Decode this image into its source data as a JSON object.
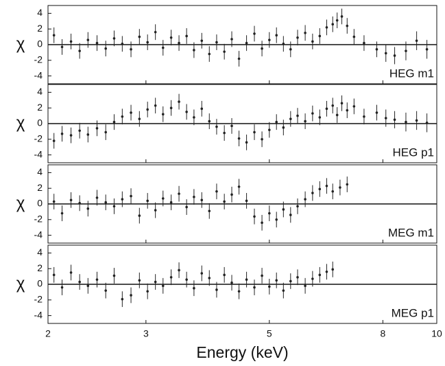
{
  "chart_data": [
    {
      "type": "scatter",
      "label": "HEG m1",
      "ylabel": "χ",
      "xscale": "log",
      "xlim": [
        2,
        10
      ],
      "xticks": [
        2,
        3,
        5,
        8,
        10
      ],
      "ylim": [
        -5,
        5
      ],
      "yticks": [
        -4,
        -2,
        0,
        2,
        4
      ],
      "color": "#222222",
      "x": [
        2.05,
        2.12,
        2.2,
        2.28,
        2.36,
        2.45,
        2.54,
        2.63,
        2.72,
        2.82,
        2.92,
        3.02,
        3.12,
        3.22,
        3.33,
        3.44,
        3.55,
        3.66,
        3.78,
        3.9,
        4.02,
        4.15,
        4.28,
        4.41,
        4.55,
        4.7,
        4.85,
        5.0,
        5.15,
        5.3,
        5.46,
        5.62,
        5.8,
        5.98,
        6.16,
        6.34,
        6.5,
        6.62,
        6.75,
        6.9,
        7.1,
        7.4,
        7.8,
        8.1,
        8.4,
        8.8,
        9.2,
        9.6
      ],
      "values": [
        1.2,
        -0.3,
        0.4,
        -0.8,
        0.6,
        0.2,
        -0.5,
        0.8,
        0.1,
        -0.6,
        1.0,
        0.3,
        1.6,
        -0.4,
        0.9,
        0.2,
        1.1,
        -0.7,
        0.5,
        -1.2,
        0.3,
        -0.9,
        0.7,
        -1.8,
        0.2,
        1.4,
        -0.5,
        0.6,
        1.2,
        0.1,
        -0.6,
        0.9,
        1.5,
        0.4,
        1.1,
        2.2,
        2.6,
        3.1,
        3.6,
        2.4,
        1.0,
        0.2,
        -0.6,
        -1.1,
        -1.4,
        -0.8,
        0.5,
        -0.6
      ],
      "errors": [
        1,
        1,
        1,
        1,
        1,
        1,
        1,
        1,
        1,
        1,
        1,
        1,
        1,
        1,
        1,
        1,
        1,
        1,
        1,
        1,
        1,
        1,
        1,
        1,
        1,
        1,
        1,
        1,
        1,
        1,
        1,
        1,
        1,
        1,
        1,
        1,
        1,
        1,
        1,
        1,
        1,
        1,
        1,
        1.1,
        1.1,
        1.2,
        1.2,
        1.2
      ]
    },
    {
      "type": "scatter",
      "label": "HEG p1",
      "ylabel": "χ",
      "xscale": "log",
      "xlim": [
        2,
        10
      ],
      "xticks": [
        2,
        3,
        5,
        8,
        10
      ],
      "ylim": [
        -5,
        5
      ],
      "yticks": [
        -4,
        -2,
        0,
        2,
        4
      ],
      "color": "#222222",
      "x": [
        2.05,
        2.12,
        2.2,
        2.28,
        2.36,
        2.45,
        2.54,
        2.63,
        2.72,
        2.82,
        2.92,
        3.02,
        3.12,
        3.22,
        3.33,
        3.44,
        3.55,
        3.66,
        3.78,
        3.9,
        4.02,
        4.15,
        4.28,
        4.41,
        4.55,
        4.7,
        4.85,
        5.0,
        5.15,
        5.3,
        5.46,
        5.62,
        5.8,
        5.98,
        6.16,
        6.34,
        6.5,
        6.62,
        6.75,
        6.9,
        7.1,
        7.4,
        7.8,
        8.1,
        8.4,
        8.8,
        9.2,
        9.6
      ],
      "values": [
        -2.2,
        -1.3,
        -1.5,
        -0.9,
        -1.4,
        -0.6,
        -1.1,
        0.2,
        0.9,
        1.4,
        0.6,
        1.8,
        2.3,
        1.2,
        2.0,
        2.8,
        1.5,
        0.8,
        1.9,
        0.3,
        -0.4,
        -1.2,
        -0.3,
        -1.9,
        -2.4,
        -1.1,
        -2.0,
        -0.8,
        0.2,
        -0.5,
        0.6,
        1.0,
        0.3,
        1.3,
        0.8,
        1.9,
        2.3,
        1.1,
        2.6,
        1.7,
        2.2,
        0.9,
        1.4,
        0.7,
        0.5,
        0.2,
        0.4,
        0.1
      ],
      "errors": [
        1,
        1,
        1,
        1,
        1,
        1,
        1,
        1,
        1,
        1,
        1,
        1,
        1,
        1,
        1,
        1,
        1,
        1,
        1,
        1,
        1,
        1,
        1,
        1,
        1,
        1,
        1,
        1,
        1,
        1,
        1,
        1,
        1,
        1,
        1,
        1,
        1,
        1,
        1,
        1,
        1,
        1,
        1,
        1.1,
        1.1,
        1.2,
        1.2,
        1.2
      ]
    },
    {
      "type": "scatter",
      "label": "MEG m1",
      "ylabel": "χ",
      "xscale": "log",
      "xlim": [
        2,
        10
      ],
      "xticks": [
        2,
        3,
        5,
        8,
        10
      ],
      "ylim": [
        -5,
        5
      ],
      "yticks": [
        -4,
        -2,
        0,
        2,
        4
      ],
      "color": "#222222",
      "x": [
        2.05,
        2.12,
        2.2,
        2.28,
        2.36,
        2.45,
        2.54,
        2.63,
        2.72,
        2.82,
        2.92,
        3.02,
        3.12,
        3.22,
        3.33,
        3.44,
        3.55,
        3.66,
        3.78,
        3.9,
        4.02,
        4.15,
        4.28,
        4.41,
        4.55,
        4.7,
        4.85,
        5.0,
        5.15,
        5.3,
        5.46,
        5.62,
        5.8,
        5.98,
        6.16,
        6.34,
        6.5,
        6.7,
        6.9
      ],
      "values": [
        0.3,
        -1.2,
        0.5,
        0.1,
        -0.6,
        0.8,
        0.2,
        -0.3,
        0.6,
        1.0,
        -1.5,
        0.4,
        -0.8,
        0.7,
        0.2,
        1.3,
        -0.4,
        0.9,
        0.5,
        -0.9,
        1.6,
        0.3,
        1.2,
        2.2,
        0.4,
        -1.6,
        -2.4,
        -1.2,
        -2.0,
        -0.7,
        -1.4,
        -0.3,
        0.6,
        1.4,
        1.9,
        2.3,
        1.6,
        2.1,
        2.5
      ],
      "errors": [
        1,
        1,
        1,
        1,
        1,
        1,
        1,
        1,
        1,
        1,
        1,
        1,
        1,
        1,
        1,
        1,
        1,
        1,
        1,
        1,
        1,
        1,
        1,
        1,
        1,
        1,
        1,
        1,
        1,
        1,
        1,
        1,
        1,
        1,
        1,
        1,
        1,
        1,
        1
      ]
    },
    {
      "type": "scatter",
      "label": "MEG p1",
      "ylabel": "χ",
      "xlabel": "Energy (keV)",
      "xscale": "log",
      "xlim": [
        2,
        10
      ],
      "xticks": [
        2,
        3,
        5,
        8,
        10
      ],
      "ylim": [
        -5,
        5
      ],
      "yticks": [
        -4,
        -2,
        0,
        2,
        4
      ],
      "color": "#222222",
      "x": [
        2.05,
        2.12,
        2.2,
        2.28,
        2.36,
        2.45,
        2.54,
        2.63,
        2.72,
        2.82,
        2.92,
        3.02,
        3.12,
        3.22,
        3.33,
        3.44,
        3.55,
        3.66,
        3.78,
        3.9,
        4.02,
        4.15,
        4.28,
        4.41,
        4.55,
        4.7,
        4.85,
        5.0,
        5.15,
        5.3,
        5.46,
        5.62,
        5.8,
        5.98,
        6.16,
        6.34,
        6.5
      ],
      "values": [
        1.2,
        -0.4,
        1.5,
        0.3,
        -0.2,
        0.6,
        -0.8,
        1.1,
        -1.9,
        -1.4,
        0.5,
        -0.9,
        0.3,
        -0.2,
        0.9,
        1.8,
        0.6,
        -0.5,
        1.4,
        0.8,
        -0.7,
        1.2,
        0.2,
        -0.9,
        0.6,
        -0.4,
        1.1,
        -0.3,
        0.5,
        -0.8,
        0.4,
        0.9,
        -0.2,
        0.7,
        1.2,
        1.6,
        1.9
      ],
      "errors": [
        1,
        1,
        1,
        1,
        1,
        1,
        1,
        1,
        1,
        1,
        1,
        1,
        1,
        1,
        1,
        1,
        1,
        1,
        1,
        1,
        1,
        1,
        1,
        1,
        1,
        1,
        1,
        1,
        1,
        1,
        1,
        1,
        1,
        1,
        1,
        1,
        1
      ]
    }
  ]
}
